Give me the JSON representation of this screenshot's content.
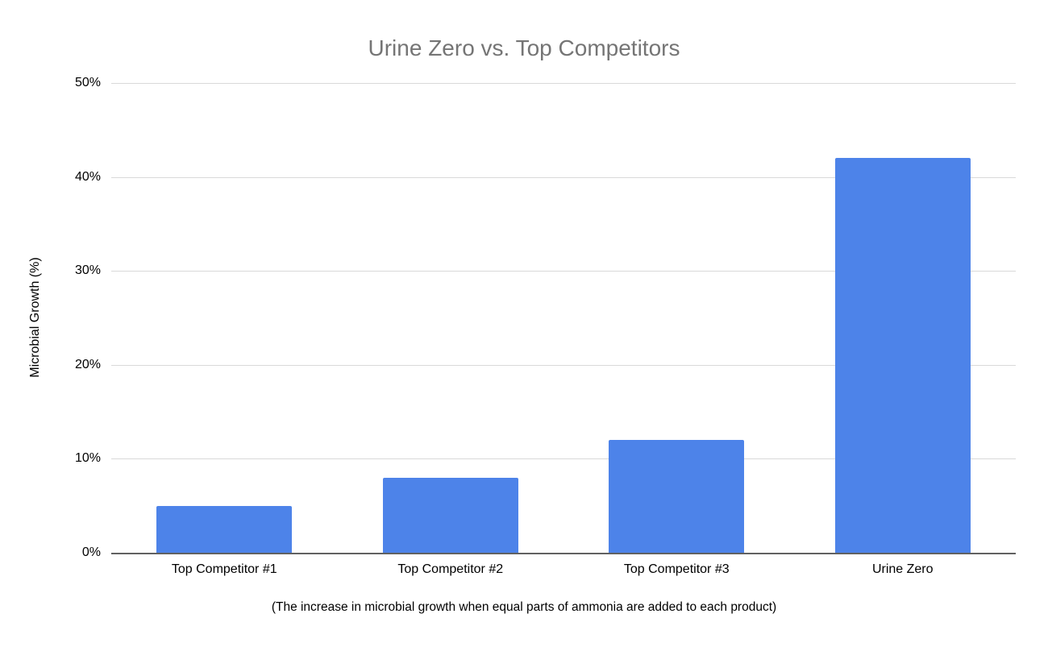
{
  "chart_data": {
    "type": "bar",
    "title": "Urine Zero vs. Top Competitors",
    "categories": [
      "Top Competitor #1",
      "Top Competitor #2",
      "Top Competitor #3",
      "Urine Zero"
    ],
    "values": [
      5,
      8,
      12,
      42
    ],
    "ylabel": "Microbial Growth (%)",
    "xlabel": "",
    "caption": "(The increase in microbial growth when equal parts of ammonia are added to each product)",
    "ylim": [
      0,
      50
    ],
    "yticks": [
      0,
      10,
      20,
      30,
      40,
      50
    ],
    "ytick_suffix": "%",
    "grid": true,
    "legend": "none",
    "colors": {
      "bar": "#4d83e9",
      "gridline": "#d9d9d9",
      "axis_line": "#616161",
      "title_text": "#757575",
      "axis_text": "#000000"
    }
  }
}
